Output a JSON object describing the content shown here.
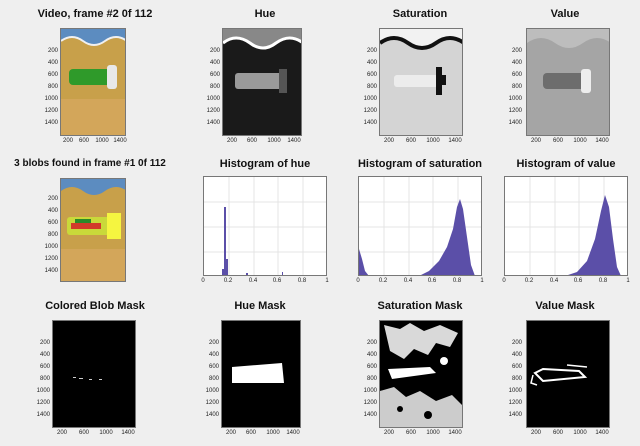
{
  "row1": {
    "video_title": "Video, frame #2 0f 112",
    "hue_title": "Hue",
    "saturation_title": "Saturation",
    "value_title": "Value"
  },
  "row2": {
    "blobs_title": "3 blobs found in frame #1 0f 112",
    "hist_hue_title": "Histogram of hue",
    "hist_sat_title": "Histogram of saturation",
    "hist_val_title": "Histogram of value"
  },
  "row3": {
    "colored_mask_title": "Colored Blob Mask",
    "hue_mask_title": "Hue Mask",
    "sat_mask_title": "Saturation Mask",
    "val_mask_title": "Value Mask"
  },
  "image_axes": {
    "y_ticks": [
      "200",
      "400",
      "600",
      "800",
      "1000",
      "1200",
      "1400"
    ],
    "x_ticks": [
      "200",
      "600",
      "1000",
      "1400"
    ]
  },
  "hist_axes": {
    "x_ticks": [
      "0",
      "0.2",
      "0.4",
      "0.6",
      "0.8",
      "1"
    ]
  },
  "colors": {
    "hist_fill": "#5b4fa8",
    "mask_white": "#ffffff",
    "mask_black": "#000000"
  }
}
